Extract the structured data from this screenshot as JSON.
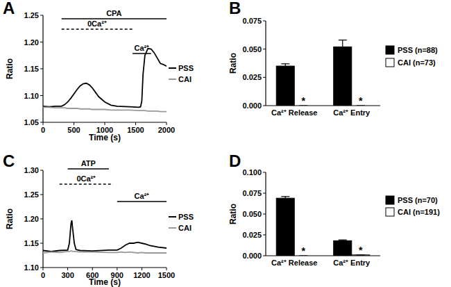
{
  "chart_data": [
    {
      "type": "line",
      "title": "A",
      "xlabel": "Time (s)",
      "ylabel": "Ratio",
      "x": [
        0,
        100,
        200,
        300,
        350,
        400,
        450,
        500,
        550,
        600,
        650,
        700,
        750,
        800,
        850,
        900,
        1000,
        1100,
        1200,
        1400,
        1550,
        1580,
        1600,
        1620,
        1650,
        1700,
        1750,
        1800,
        1850,
        1900,
        1950,
        2000
      ],
      "series": [
        {
          "name": "PSS",
          "color": "#000000",
          "values": [
            1.08,
            1.079,
            1.08,
            1.08,
            1.083,
            1.088,
            1.095,
            1.103,
            1.111,
            1.118,
            1.122,
            1.123,
            1.12,
            1.114,
            1.106,
            1.098,
            1.088,
            1.082,
            1.08,
            1.079,
            1.078,
            1.079,
            1.09,
            1.14,
            1.175,
            1.188,
            1.187,
            1.18,
            1.17,
            1.16,
            1.158,
            1.155
          ]
        },
        {
          "name": "CAI",
          "color": "#999999",
          "values": [
            1.078,
            1.078,
            1.077,
            1.077,
            1.077,
            1.076,
            1.076,
            1.076,
            1.076,
            1.075,
            1.075,
            1.075,
            1.075,
            1.074,
            1.074,
            1.074,
            1.074,
            1.073,
            1.073,
            1.073,
            1.072,
            1.072,
            1.072,
            1.072,
            1.072,
            1.071,
            1.071,
            1.071,
            1.071,
            1.07,
            1.07,
            1.07
          ]
        }
      ],
      "xlim": [
        0,
        2000
      ],
      "xticks": [
        0,
        500,
        1000,
        1500,
        2000
      ],
      "ylim": [
        1.05,
        1.25
      ],
      "yticks": [
        1.05,
        {
          "value": 1.1,
          "label": "1.10"
        },
        1.15,
        {
          "value": 1.2,
          "label": "1.20"
        },
        1.25
      ],
      "annotations": [
        {
          "text": "CPA",
          "x": [
            300,
            2000
          ],
          "line_style": "solid"
        },
        {
          "text": "0Ca²⁺",
          "x": [
            300,
            1450
          ],
          "line_style": "dashed"
        },
        {
          "text": "Ca²⁺",
          "x": [
            1450,
            1750
          ],
          "line_style": "solid"
        }
      ],
      "grid": false,
      "legend": "right"
    },
    {
      "type": "bar",
      "title": "B",
      "ylabel": "Ratio",
      "categories": [
        "Ca²⁺ Release",
        "Ca²⁺ Entry"
      ],
      "series": [
        {
          "name": "PSS (n=88)",
          "color": "#000000",
          "values": [
            0.035,
            0.052
          ],
          "errors": [
            0.002,
            0.006
          ]
        },
        {
          "name": "CAI (n=73)",
          "color": "#ffffff",
          "values": [
            0,
            0
          ],
          "errors": [
            0,
            0
          ],
          "significance": [
            "*",
            "*"
          ]
        }
      ],
      "ylim": [
        0,
        0.075
      ],
      "yticks": [
        {
          "value": 0,
          "label": "0.000"
        },
        0.025,
        {
          "value": 0.05,
          "label": "0.050"
        },
        0.075
      ],
      "grid": false,
      "legend": "right"
    },
    {
      "type": "line",
      "title": "C",
      "xlabel": "Time (s)",
      "ylabel": "Ratio",
      "x": [
        0,
        100,
        200,
        300,
        320,
        340,
        350,
        360,
        380,
        400,
        450,
        600,
        800,
        900,
        950,
        1000,
        1050,
        1100,
        1150,
        1200,
        1250,
        1300,
        1400,
        1500
      ],
      "series": [
        {
          "name": "PSS",
          "color": "#000000",
          "values": [
            1.135,
            1.133,
            1.135,
            1.136,
            1.15,
            1.19,
            1.197,
            1.18,
            1.15,
            1.137,
            1.135,
            1.134,
            1.136,
            1.136,
            1.14,
            1.146,
            1.15,
            1.15,
            1.152,
            1.15,
            1.148,
            1.145,
            1.142,
            1.14
          ]
        },
        {
          "name": "CAI",
          "color": "#999999",
          "values": [
            1.13,
            1.132,
            1.131,
            1.133,
            1.133,
            1.134,
            1.134,
            1.133,
            1.133,
            1.133,
            1.132,
            1.132,
            1.131,
            1.131,
            1.132,
            1.131,
            1.132,
            1.131,
            1.13,
            1.131,
            1.13,
            1.13,
            1.13,
            1.13
          ]
        }
      ],
      "xlim": [
        0,
        1500
      ],
      "xticks": [
        0,
        300,
        600,
        900,
        1200,
        1500
      ],
      "ylim": [
        1.1,
        1.3
      ],
      "yticks": [
        {
          "value": 1.1,
          "label": "1.10"
        },
        1.15,
        {
          "value": 1.2,
          "label": "1.20"
        },
        1.25,
        {
          "value": 1.3,
          "label": "1.30"
        }
      ],
      "annotations": [
        {
          "text": "ATP",
          "x": [
            300,
            800
          ],
          "line_style": "solid"
        },
        {
          "text": "0Ca²⁺",
          "x": [
            200,
            850
          ],
          "line_style": "dashed"
        },
        {
          "text": "Ca²⁺",
          "x": [
            900,
            1500
          ],
          "line_style": "solid"
        }
      ],
      "grid": false,
      "legend": "right"
    },
    {
      "type": "bar",
      "title": "D",
      "ylabel": "Ratio",
      "categories": [
        "Ca²⁺ Release",
        "Ca²⁺ Entry"
      ],
      "series": [
        {
          "name": "PSS (n=70)",
          "color": "#000000",
          "values": [
            0.069,
            0.018
          ],
          "errors": [
            0.002,
            0.001
          ]
        },
        {
          "name": "CAI (n=191)",
          "color": "#ffffff",
          "values": [
            0,
            0.001
          ],
          "errors": [
            0,
            0
          ],
          "significance": [
            "*",
            "*"
          ]
        }
      ],
      "ylim": [
        0,
        0.1
      ],
      "yticks": [
        {
          "value": 0,
          "label": "0.000"
        },
        0.025,
        {
          "value": 0.05,
          "label": "0.050"
        },
        0.075,
        {
          "value": 0.1,
          "label": "0.100"
        }
      ],
      "grid": false,
      "legend": "right"
    }
  ]
}
